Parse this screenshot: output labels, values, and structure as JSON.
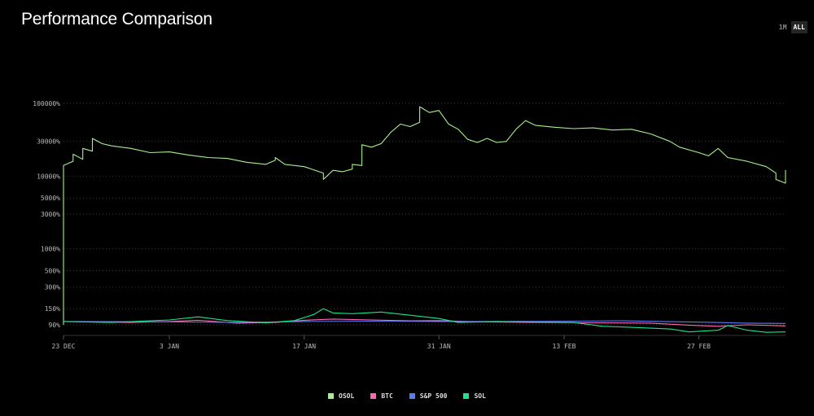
{
  "header": {
    "title": "Performance Comparison",
    "ranges": [
      {
        "label": "1M",
        "active": false
      },
      {
        "label": "ALL",
        "active": true
      }
    ]
  },
  "chart_data": {
    "type": "line",
    "title": "Performance Comparison",
    "y_scale": "log",
    "ylim": [
      70,
      110000
    ],
    "y_ticks": [
      {
        "value": 100000,
        "label": "100000%"
      },
      {
        "value": 30000,
        "label": "30000%"
      },
      {
        "value": 10000,
        "label": "10000%"
      },
      {
        "value": 5000,
        "label": "5000%"
      },
      {
        "value": 3000,
        "label": "3000%"
      },
      {
        "value": 1000,
        "label": "1000%"
      },
      {
        "value": 500,
        "label": "500%"
      },
      {
        "value": 300,
        "label": "300%"
      },
      {
        "value": 150,
        "label": "150%"
      },
      {
        "value": 90,
        "label": "90%"
      }
    ],
    "x_range": [
      "2024-12-23",
      "2025-03-08"
    ],
    "x_ticks": [
      {
        "date": "2024-12-23",
        "label": "23 DEC"
      },
      {
        "date": "2025-01-03",
        "label": "3 JAN"
      },
      {
        "date": "2025-01-17",
        "label": "17 JAN"
      },
      {
        "date": "2025-01-31",
        "label": "31 JAN"
      },
      {
        "date": "2025-02-13",
        "label": "13 FEB"
      },
      {
        "date": "2025-02-27",
        "label": "27 FEB"
      }
    ],
    "grid": "horizontal-dotted",
    "legend_position": "bottom-center",
    "series": [
      {
        "name": "OSOL",
        "color": "#a6f08c",
        "points": [
          [
            "2024-12-23",
            90
          ],
          [
            "2024-12-23",
            14000
          ],
          [
            "2024-12-24",
            16000
          ],
          [
            "2024-12-24",
            20000
          ],
          [
            "2024-12-25",
            17000
          ],
          [
            "2024-12-25",
            24000
          ],
          [
            "2024-12-26",
            22000
          ],
          [
            "2024-12-26",
            33000
          ],
          [
            "2024-12-27",
            28000
          ],
          [
            "2024-12-28",
            26000
          ],
          [
            "2024-12-30",
            24000
          ],
          [
            "2025-01-01",
            21000
          ],
          [
            "2025-01-03",
            21500
          ],
          [
            "2025-01-05",
            19500
          ],
          [
            "2025-01-07",
            18000
          ],
          [
            "2025-01-09",
            17500
          ],
          [
            "2025-01-11",
            15500
          ],
          [
            "2025-01-12",
            15000
          ],
          [
            "2025-01-13",
            14500
          ],
          [
            "2025-01-14",
            16500
          ],
          [
            "2025-01-14",
            18000
          ],
          [
            "2025-01-15",
            14500
          ],
          [
            "2025-01-17",
            13500
          ],
          [
            "2025-01-19",
            11000
          ],
          [
            "2025-01-19",
            9000
          ],
          [
            "2025-01-20",
            12000
          ],
          [
            "2025-01-21",
            11500
          ],
          [
            "2025-01-22",
            12500
          ],
          [
            "2025-01-22",
            14500
          ],
          [
            "2025-01-23",
            14000
          ],
          [
            "2025-01-23",
            18000
          ],
          [
            "2025-01-23",
            27000
          ],
          [
            "2025-01-24",
            25000
          ],
          [
            "2025-01-25",
            28000
          ],
          [
            "2025-01-26",
            40000
          ],
          [
            "2025-01-27",
            52000
          ],
          [
            "2025-01-28",
            48000
          ],
          [
            "2025-01-29",
            55000
          ],
          [
            "2025-01-29",
            90000
          ],
          [
            "2025-01-30",
            75000
          ],
          [
            "2025-01-31",
            80000
          ],
          [
            "2025-02-01",
            52000
          ],
          [
            "2025-02-02",
            44000
          ],
          [
            "2025-02-03",
            32000
          ],
          [
            "2025-02-04",
            29000
          ],
          [
            "2025-02-05",
            33000
          ],
          [
            "2025-02-06",
            29000
          ],
          [
            "2025-02-07",
            30000
          ],
          [
            "2025-02-08",
            44000
          ],
          [
            "2025-02-09",
            58000
          ],
          [
            "2025-02-10",
            50000
          ],
          [
            "2025-02-12",
            47000
          ],
          [
            "2025-02-14",
            45000
          ],
          [
            "2025-02-16",
            46000
          ],
          [
            "2025-02-18",
            43000
          ],
          [
            "2025-02-20",
            44000
          ],
          [
            "2025-02-22",
            38000
          ],
          [
            "2025-02-24",
            30000
          ],
          [
            "2025-02-25",
            25000
          ],
          [
            "2025-02-27",
            21000
          ],
          [
            "2025-02-28",
            19000
          ],
          [
            "2025-03-01",
            24000
          ],
          [
            "2025-03-02",
            18000
          ],
          [
            "2025-03-04",
            16000
          ],
          [
            "2025-03-06",
            13500
          ],
          [
            "2025-03-07",
            11000
          ],
          [
            "2025-03-07",
            9000
          ],
          [
            "2025-03-08",
            8000
          ],
          [
            "2025-03-08",
            10000
          ],
          [
            "2025-03-08",
            12000
          ],
          [
            "2025-03-08",
            10500
          ]
        ]
      },
      {
        "name": "BTC",
        "color": "#ff69b4",
        "points": [
          [
            "2024-12-23",
            100
          ],
          [
            "2024-12-30",
            97
          ],
          [
            "2025-01-03",
            100
          ],
          [
            "2025-01-06",
            104
          ],
          [
            "2025-01-10",
            95
          ],
          [
            "2025-01-14",
            97
          ],
          [
            "2025-01-17",
            104
          ],
          [
            "2025-01-20",
            108
          ],
          [
            "2025-01-24",
            105
          ],
          [
            "2025-01-28",
            102
          ],
          [
            "2025-01-31",
            103
          ],
          [
            "2025-02-04",
            99
          ],
          [
            "2025-02-10",
            97
          ],
          [
            "2025-02-16",
            96
          ],
          [
            "2025-02-22",
            95
          ],
          [
            "2025-02-26",
            89
          ],
          [
            "2025-03-01",
            86
          ],
          [
            "2025-03-04",
            90
          ],
          [
            "2025-03-08",
            87
          ]
        ]
      },
      {
        "name": "S&P 500",
        "color": "#5b7cf5",
        "points": [
          [
            "2024-12-23",
            100
          ],
          [
            "2025-01-03",
            99
          ],
          [
            "2025-01-10",
            97
          ],
          [
            "2025-01-17",
            100
          ],
          [
            "2025-01-24",
            101
          ],
          [
            "2025-01-31",
            100
          ],
          [
            "2025-02-07",
            100
          ],
          [
            "2025-02-14",
            101
          ],
          [
            "2025-02-19",
            102
          ],
          [
            "2025-02-27",
            98
          ],
          [
            "2025-03-04",
            95
          ],
          [
            "2025-03-08",
            94
          ]
        ]
      },
      {
        "name": "SOL",
        "color": "#19e68c",
        "points": [
          [
            "2024-12-23",
            100
          ],
          [
            "2024-12-28",
            97
          ],
          [
            "2025-01-03",
            105
          ],
          [
            "2025-01-06",
            116
          ],
          [
            "2025-01-09",
            103
          ],
          [
            "2025-01-13",
            96
          ],
          [
            "2025-01-16",
            103
          ],
          [
            "2025-01-18",
            125
          ],
          [
            "2025-01-19",
            150
          ],
          [
            "2025-01-20",
            131
          ],
          [
            "2025-01-22",
            128
          ],
          [
            "2025-01-25",
            135
          ],
          [
            "2025-01-28",
            122
          ],
          [
            "2025-01-31",
            110
          ],
          [
            "2025-02-02",
            97
          ],
          [
            "2025-02-06",
            100
          ],
          [
            "2025-02-10",
            98
          ],
          [
            "2025-02-14",
            97
          ],
          [
            "2025-02-17",
            86
          ],
          [
            "2025-02-20",
            83
          ],
          [
            "2025-02-24",
            79
          ],
          [
            "2025-02-26",
            72
          ],
          [
            "2025-03-01",
            76
          ],
          [
            "2025-03-02",
            88
          ],
          [
            "2025-03-04",
            76
          ],
          [
            "2025-03-06",
            71
          ],
          [
            "2025-03-08",
            72
          ]
        ]
      }
    ]
  }
}
